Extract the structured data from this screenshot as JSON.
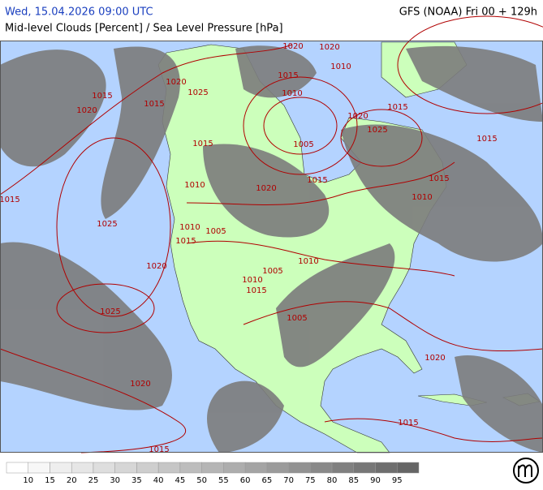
{
  "header": {
    "datetime": "Wed, 15.04.2026 09:00 UTC",
    "model": "GFS (NOAA) Fri 00 + 129h",
    "title": "Mid-level Clouds [Percent] / Sea Level Pressure [hPa]"
  },
  "isobars": [
    1020,
    1020,
    1015,
    1010,
    1020,
    1025,
    1015,
    1015,
    1020,
    1010,
    1015,
    1020,
    1025,
    1005,
    1015,
    1015,
    1010,
    1020,
    1015,
    1015,
    1010,
    1015,
    1025,
    1010,
    1005,
    1015,
    1010,
    1020,
    1005,
    1010,
    1015,
    1025,
    1005,
    1020,
    1020,
    1015,
    1015
  ],
  "legend": {
    "labels": [
      10,
      15,
      20,
      25,
      30,
      35,
      40,
      45,
      50,
      55,
      60,
      65,
      70,
      75,
      80,
      85,
      90,
      95
    ],
    "colors": [
      "#ffffff",
      "#f7f7f7",
      "#eeeeee",
      "#e6e6e6",
      "#dedede",
      "#d6d6d6",
      "#cecece",
      "#c6c6c6",
      "#bdbdbd",
      "#b5b5b5",
      "#adadad",
      "#a4a4a4",
      "#9b9b9b",
      "#929292",
      "#898989",
      "#808080",
      "#777777",
      "#6e6e6e",
      "#656565"
    ]
  }
}
